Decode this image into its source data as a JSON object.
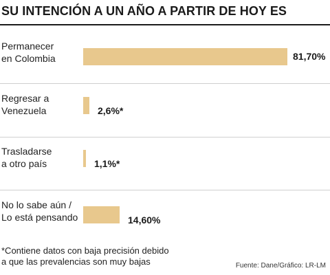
{
  "chart_data": {
    "type": "bar",
    "orientation": "horizontal",
    "title": "SU INTENCIÓN A UN AÑO A PARTIR DE HOY ES",
    "categories": [
      [
        "Permanecer",
        "en Colombia"
      ],
      [
        "Regresar a",
        "Venezuela"
      ],
      [
        "Trasladarse",
        "a otro país"
      ],
      [
        "No lo sabe aún /",
        "Lo está pensando"
      ]
    ],
    "values": [
      81.7,
      2.6,
      1.1,
      14.6
    ],
    "value_labels": [
      "81,70%",
      "2,6%*",
      "1,1%*",
      "14,60%"
    ],
    "xlim": [
      0,
      81.7
    ],
    "bar_color": "#e8c88d",
    "grid": false,
    "footnote": [
      "*Contiene datos con baja precisión debido",
      "a que las prevalencias son muy bajas"
    ],
    "source": "Fuente: Dane/Gráfico: LR-LM"
  }
}
